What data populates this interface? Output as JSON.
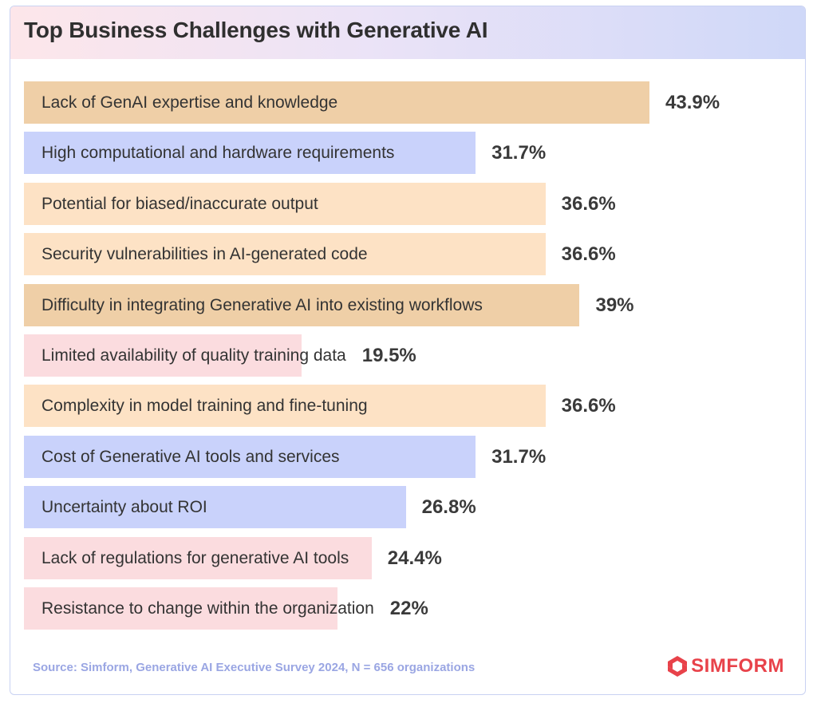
{
  "title": "Top Business Challenges with Generative AI",
  "source": "Source: Simform, Generative AI Executive Survey 2024, N = 656 organizations",
  "logo": {
    "icon": "simform-logo-icon",
    "text": "SIMFORM"
  },
  "colors": {
    "peach_dark": "#efcfa7",
    "peach": "#fde2c5",
    "blue": "#c9d2fb",
    "pink": "#fbdcdf",
    "logo_red": "#e8424a"
  },
  "chart_data": {
    "type": "bar",
    "orientation": "horizontal",
    "title": "Top Business Challenges with Generative AI",
    "xlim": [
      0,
      50
    ],
    "categories": [
      "Lack of GenAI expertise and knowledge",
      "High computational and hardware requirements",
      "Potential for biased/inaccurate output",
      "Security vulnerabilities in AI-generated code",
      "Difficulty in integrating Generative AI into existing workflows",
      "Limited availability of quality training data",
      "Complexity in model training and fine-tuning",
      "Cost of Generative AI tools and services",
      "Uncertainty about ROI",
      "Lack of regulations for generative AI tools",
      "Resistance to change within the organization"
    ],
    "values": [
      43.9,
      31.7,
      36.6,
      36.6,
      39,
      19.5,
      36.6,
      31.7,
      26.8,
      24.4,
      22
    ],
    "value_labels": [
      "43.9%",
      "31.7%",
      "36.6%",
      "36.6%",
      "39%",
      "19.5%",
      "36.6%",
      "31.7%",
      "26.8%",
      "24.4%",
      "22%"
    ],
    "bar_colors": [
      "#efcfa7",
      "#c9d2fb",
      "#fde2c5",
      "#fde2c5",
      "#efcfa7",
      "#fbdcdf",
      "#fde2c5",
      "#c9d2fb",
      "#c9d2fb",
      "#fbdcdf",
      "#fbdcdf"
    ],
    "grid": false,
    "legend": "none"
  }
}
